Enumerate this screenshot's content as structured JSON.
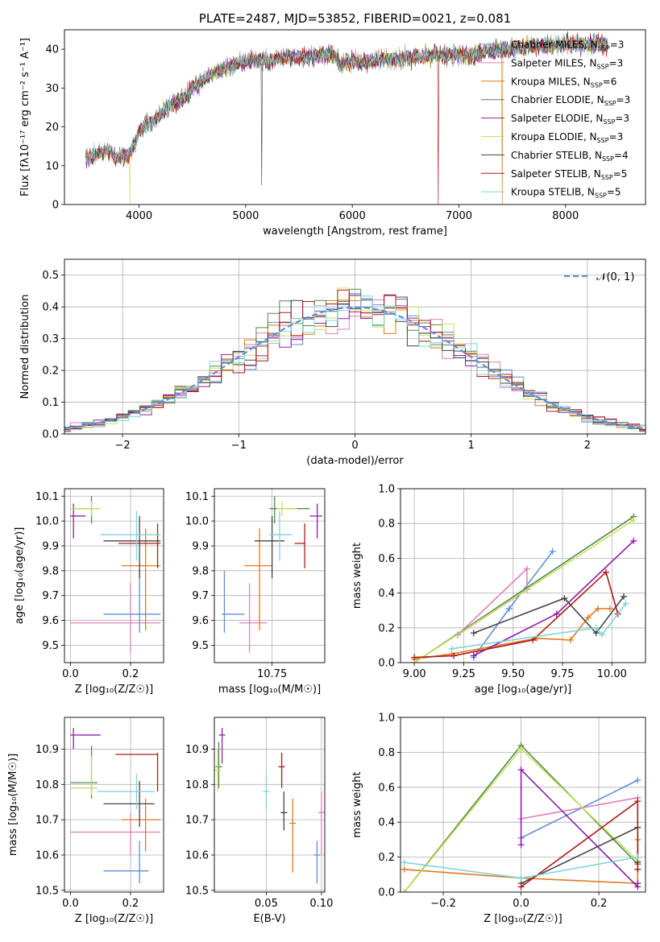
{
  "chart_data": [
    {
      "type": "line",
      "title": "PLATE=2487, MJD=53852, FIBERID=0021, z=0.081",
      "xlabel": "wavelength [Angstrom, rest frame]",
      "ylabel": "Flux [fλ10⁻¹⁷ erg cm⁻² s⁻¹ A⁻¹]",
      "xlim": [
        3300,
        8750
      ],
      "ylim": [
        0,
        45
      ],
      "xticks": [
        4000,
        5000,
        6000,
        7000,
        8000
      ],
      "yticks": [
        0,
        10,
        20,
        30,
        40
      ],
      "legend_position": "top-right",
      "legend": [
        {
          "label": "Chabrier MILES, N_SSP=3",
          "color": "#5f8fd8"
        },
        {
          "label": "Salpeter MILES, N_SSP=3",
          "color": "#e07fbf"
        },
        {
          "label": "Kroupa MILES, N_SSP=6",
          "color": "#e07a1c"
        },
        {
          "label": "Chabrier ELODIE, N_SSP=3",
          "color": "#4e8a4e"
        },
        {
          "label": "Salpeter ELODIE, N_SSP=3",
          "color": "#8e1fa8"
        },
        {
          "label": "Kroupa ELODIE, N_SSP=3",
          "color": "#c9e05a"
        },
        {
          "label": "Chabrier STELIB, N_SSP=4",
          "color": "#444444"
        },
        {
          "label": "Salpeter STELIB, N_SSP=5",
          "color": "#b01818"
        },
        {
          "label": "Kroupa STELIB, N_SSP=5",
          "color": "#7fd4dc"
        }
      ],
      "continuum_points": [
        [
          3500,
          12
        ],
        [
          3600,
          13
        ],
        [
          3700,
          14
        ],
        [
          3800,
          12
        ],
        [
          3900,
          13
        ],
        [
          3950,
          15
        ],
        [
          4000,
          19
        ],
        [
          4100,
          21
        ],
        [
          4200,
          23
        ],
        [
          4300,
          26
        ],
        [
          4400,
          27
        ],
        [
          4500,
          30
        ],
        [
          4600,
          32
        ],
        [
          4700,
          34
        ],
        [
          4800,
          35
        ],
        [
          4900,
          36
        ],
        [
          5000,
          37
        ],
        [
          5100,
          37.5
        ],
        [
          5200,
          37
        ],
        [
          5300,
          37.5
        ],
        [
          5400,
          38
        ],
        [
          5500,
          38
        ],
        [
          5600,
          38
        ],
        [
          5700,
          38.5
        ],
        [
          5800,
          39
        ],
        [
          5850,
          38
        ],
        [
          5900,
          36
        ],
        [
          6000,
          37
        ],
        [
          6100,
          36.5
        ],
        [
          6200,
          37
        ],
        [
          6300,
          37.5
        ],
        [
          6400,
          37.5
        ],
        [
          6500,
          38
        ],
        [
          6600,
          38
        ],
        [
          6700,
          38
        ],
        [
          6800,
          38.5
        ],
        [
          6900,
          38.5
        ],
        [
          7000,
          38.5
        ],
        [
          7100,
          38.5
        ],
        [
          7200,
          39
        ],
        [
          7300,
          39.5
        ],
        [
          7400,
          40
        ],
        [
          7500,
          40
        ],
        [
          7600,
          40.5
        ],
        [
          7700,
          41
        ],
        [
          7800,
          41
        ],
        [
          7900,
          41
        ],
        [
          8000,
          41.5
        ],
        [
          8100,
          41
        ],
        [
          8200,
          41
        ],
        [
          8300,
          41.5
        ],
        [
          8400,
          41
        ]
      ]
    },
    {
      "type": "histogram",
      "xlabel": "(data-model)/error",
      "ylabel": "Normed distribution",
      "xlim": [
        -2.5,
        2.5
      ],
      "ylim": [
        0,
        0.55
      ],
      "xticks": [
        -2,
        -1,
        0,
        1,
        2
      ],
      "yticks": [
        0.0,
        0.1,
        0.2,
        0.3,
        0.4,
        0.5
      ],
      "grid": true,
      "legend": [
        {
          "label": "𝒩(0, 1)",
          "color": "#5f8fd8",
          "style": "dashed"
        }
      ],
      "legend_position": "top-right"
    },
    {
      "type": "errorbar",
      "xlabel": "Z [log₁₀(Z/Z☉)]",
      "ylabel": "age  [log₁₀(age/yr)]",
      "xlim": [
        -0.02,
        0.31
      ],
      "ylim": [
        9.43,
        10.13
      ],
      "xticks": [
        0.0,
        0.2
      ],
      "yticks": [
        9.5,
        9.6,
        9.7,
        9.8,
        9.9,
        10.0,
        10.1
      ],
      "grid": true,
      "points": [
        {
          "color": "#5f8fd8",
          "x": 0.23,
          "y": 9.625,
          "xerr": [
            0.11,
            0.3
          ],
          "yerr": [
            9.55,
            9.8
          ]
        },
        {
          "color": "#e07fbf",
          "x": 0.2,
          "y": 9.59,
          "xerr": [
            0.0,
            0.3
          ],
          "yerr": [
            9.47,
            9.75
          ]
        },
        {
          "color": "#e07a1c",
          "x": 0.25,
          "y": 9.82,
          "xerr": [
            0.17,
            0.3
          ],
          "yerr": [
            9.56,
            9.97
          ]
        },
        {
          "color": "#4e8a4e",
          "x": 0.07,
          "y": 10.05,
          "xerr": [
            0.01,
            0.09
          ],
          "yerr": [
            9.99,
            10.1
          ]
        },
        {
          "color": "#8e1fa8",
          "x": 0.01,
          "y": 10.02,
          "xerr": [
            0.0,
            0.05
          ],
          "yerr": [
            9.93,
            10.07
          ]
        },
        {
          "color": "#c9e05a",
          "x": 0.07,
          "y": 10.05,
          "xerr": [
            0.0,
            0.1
          ],
          "yerr": [
            10.02,
            10.08
          ]
        },
        {
          "color": "#444444",
          "x": 0.23,
          "y": 9.92,
          "xerr": [
            0.11,
            0.3
          ],
          "yerr": [
            9.77,
            10.02
          ]
        },
        {
          "color": "#b01818",
          "x": 0.29,
          "y": 9.91,
          "xerr": [
            0.16,
            0.3
          ],
          "yerr": [
            9.81,
            9.99
          ]
        },
        {
          "color": "#7fd4dc",
          "x": 0.22,
          "y": 9.945,
          "xerr": [
            0.1,
            0.3
          ],
          "yerr": [
            9.84,
            10.04
          ]
        }
      ]
    },
    {
      "type": "errorbar",
      "xlabel": "mass [log₁₀(M/M☉)]",
      "ylabel": "",
      "xlim": [
        10.52,
        10.96
      ],
      "ylim": [
        9.43,
        10.13
      ],
      "xticks": [
        10.5,
        10.75
      ],
      "yticks": [
        9.5,
        9.6,
        9.7,
        9.8,
        9.9,
        10.0,
        10.1
      ],
      "grid": true,
      "points": [
        {
          "color": "#5f8fd8",
          "x": 10.56,
          "y": 9.625,
          "xerr": [
            10.55,
            10.64
          ],
          "yerr": [
            9.55,
            9.8
          ]
        },
        {
          "color": "#e07fbf",
          "x": 10.66,
          "y": 9.59,
          "xerr": [
            10.62,
            10.73
          ],
          "yerr": [
            9.47,
            9.75
          ]
        },
        {
          "color": "#e07a1c",
          "x": 10.7,
          "y": 9.82,
          "xerr": [
            10.64,
            10.75
          ],
          "yerr": [
            9.56,
            9.97
          ]
        },
        {
          "color": "#4e8a4e",
          "x": 10.76,
          "y": 10.05,
          "xerr": [
            10.74,
            10.9
          ],
          "yerr": [
            9.99,
            10.1
          ]
        },
        {
          "color": "#8e1fa8",
          "x": 10.93,
          "y": 10.02,
          "xerr": [
            10.9,
            10.95
          ],
          "yerr": [
            9.93,
            10.07
          ]
        },
        {
          "color": "#c9e05a",
          "x": 10.79,
          "y": 10.05,
          "xerr": [
            10.77,
            10.85
          ],
          "yerr": [
            10.02,
            10.08
          ]
        },
        {
          "color": "#444444",
          "x": 10.75,
          "y": 9.92,
          "xerr": [
            10.68,
            10.8
          ],
          "yerr": [
            9.77,
            10.02
          ]
        },
        {
          "color": "#b01818",
          "x": 10.88,
          "y": 9.91,
          "xerr": [
            10.84,
            10.88
          ],
          "yerr": [
            9.81,
            9.99
          ]
        },
        {
          "color": "#7fd4dc",
          "x": 10.78,
          "y": 9.945,
          "xerr": [
            10.74,
            10.83
          ],
          "yerr": [
            9.84,
            10.04
          ]
        }
      ]
    },
    {
      "type": "line",
      "xlabel": "age  [log₁₀(age/yr)]",
      "ylabel": "mass weight",
      "xlim": [
        8.93,
        10.17
      ],
      "ylim": [
        0,
        1
      ],
      "xticks": [
        9.0,
        9.25,
        9.5,
        9.75,
        10.0
      ],
      "yticks": [
        0.0,
        0.2,
        0.4,
        0.6,
        0.8,
        1.0
      ],
      "grid": true,
      "series": [
        {
          "color": "#5f8fd8",
          "x": [
            9.3,
            9.48,
            9.7
          ],
          "y": [
            0.03,
            0.31,
            0.64
          ]
        },
        {
          "color": "#e07fbf",
          "x": [
            9.22,
            9.57,
            9.57,
            9.22
          ],
          "y": [
            0.16,
            0.54,
            0.42,
            0.16
          ]
        },
        {
          "color": "#e07a1c",
          "x": [
            9.0,
            9.19,
            9.62,
            9.79,
            9.88,
            9.93,
            9.99
          ],
          "y": [
            0.02,
            0.05,
            0.14,
            0.13,
            0.26,
            0.31,
            0.31
          ]
        },
        {
          "color": "#4e8a4e",
          "x": [
            9.0,
            10.11
          ],
          "y": [
            0.0,
            0.84
          ]
        },
        {
          "color": "#8e1fa8",
          "x": [
            9.3,
            9.72,
            10.11
          ],
          "y": [
            0.04,
            0.28,
            0.7
          ]
        },
        {
          "color": "#c9e05a",
          "x": [
            9.0,
            10.11
          ],
          "y": [
            0.0,
            0.82
          ]
        },
        {
          "color": "#444444",
          "x": [
            9.3,
            9.76,
            9.92,
            10.06
          ],
          "y": [
            0.17,
            0.37,
            0.17,
            0.38
          ]
        },
        {
          "color": "#b01818",
          "x": [
            9.0,
            9.2,
            9.6,
            9.97,
            10.03
          ],
          "y": [
            0.03,
            0.04,
            0.13,
            0.52,
            0.28
          ]
        },
        {
          "color": "#7fd4dc",
          "x": [
            9.19,
            9.92,
            9.95,
            10.07
          ],
          "y": [
            0.08,
            0.2,
            0.16,
            0.34
          ]
        }
      ]
    },
    {
      "type": "errorbar",
      "xlabel": "Z [log₁₀(Z/Z☉)]",
      "ylabel": "mass [log₁₀(M/M☉)]",
      "xlim": [
        -0.02,
        0.31
      ],
      "ylim": [
        10.495,
        10.99
      ],
      "xticks": [
        0.0,
        0.2
      ],
      "yticks": [
        10.5,
        10.6,
        10.7,
        10.8,
        10.9
      ],
      "grid": true,
      "points": [
        {
          "color": "#5f8fd8",
          "x": 0.23,
          "y": 10.555,
          "xerr": [
            0.11,
            0.26
          ],
          "yerr": [
            10.52,
            10.64
          ]
        },
        {
          "color": "#e07fbf",
          "x": 0.2,
          "y": 10.665,
          "xerr": [
            0.0,
            0.3
          ],
          "yerr": [
            10.6,
            10.72
          ]
        },
        {
          "color": "#e07a1c",
          "x": 0.25,
          "y": 10.7,
          "xerr": [
            0.17,
            0.3
          ],
          "yerr": [
            10.61,
            10.76
          ]
        },
        {
          "color": "#4e8a4e",
          "x": 0.07,
          "y": 10.805,
          "xerr": [
            0.0,
            0.09
          ],
          "yerr": [
            10.76,
            10.91
          ]
        },
        {
          "color": "#8e1fa8",
          "x": 0.01,
          "y": 10.94,
          "xerr": [
            0.0,
            0.1
          ],
          "yerr": [
            10.9,
            10.96
          ]
        },
        {
          "color": "#c9e05a",
          "x": 0.07,
          "y": 10.79,
          "xerr": [
            0.0,
            0.09
          ],
          "yerr": [
            10.77,
            10.88
          ]
        },
        {
          "color": "#444444",
          "x": 0.23,
          "y": 10.745,
          "xerr": [
            0.11,
            0.28
          ],
          "yerr": [
            10.68,
            10.81
          ]
        },
        {
          "color": "#b01818",
          "x": 0.29,
          "y": 10.885,
          "xerr": [
            0.15,
            0.29
          ],
          "yerr": [
            10.78,
            10.89
          ]
        },
        {
          "color": "#7fd4dc",
          "x": 0.22,
          "y": 10.78,
          "xerr": [
            0.09,
            0.28
          ],
          "yerr": [
            10.73,
            10.83
          ]
        }
      ]
    },
    {
      "type": "errorbar",
      "xlabel": "E(B-V)",
      "ylabel": "",
      "xlim": [
        0.003,
        0.103
      ],
      "ylim": [
        10.495,
        10.99
      ],
      "xticks": [
        0.05,
        0.1
      ],
      "yticks": [
        10.5,
        10.6,
        10.7,
        10.8,
        10.9
      ],
      "grid": true,
      "points": [
        {
          "color": "#5f8fd8",
          "x": 0.096,
          "y": 10.6,
          "yerr": [
            10.52,
            10.64
          ]
        },
        {
          "color": "#e07fbf",
          "x": 0.1,
          "y": 10.72,
          "yerr": [
            10.6,
            10.78
          ]
        },
        {
          "color": "#e07a1c",
          "x": 0.074,
          "y": 10.69,
          "yerr": [
            10.55,
            10.76
          ]
        },
        {
          "color": "#4e8a4e",
          "x": 0.007,
          "y": 10.85,
          "yerr": [
            10.79,
            10.92
          ]
        },
        {
          "color": "#8e1fa8",
          "x": 0.01,
          "y": 10.94,
          "yerr": [
            10.86,
            10.96
          ]
        },
        {
          "color": "#c9e05a",
          "x": 0.006,
          "y": 10.84,
          "yerr": [
            10.78,
            10.9
          ]
        },
        {
          "color": "#444444",
          "x": 0.066,
          "y": 10.72,
          "yerr": [
            10.67,
            10.78
          ]
        },
        {
          "color": "#b01818",
          "x": 0.064,
          "y": 10.85,
          "yerr": [
            10.79,
            10.89
          ]
        },
        {
          "color": "#7fd4dc",
          "x": 0.05,
          "y": 10.78,
          "yerr": [
            10.73,
            10.83
          ]
        }
      ]
    },
    {
      "type": "line",
      "xlabel": "Z [log₁₀(Z/Z☉)]",
      "ylabel": "mass weight",
      "xlim": [
        -0.31,
        0.32
      ],
      "ylim": [
        0,
        1
      ],
      "xticks": [
        -0.2,
        0.0,
        0.2
      ],
      "yticks": [
        0.0,
        0.2,
        0.4,
        0.6,
        0.8,
        1.0
      ],
      "grid": true,
      "series": [
        {
          "color": "#5f8fd8",
          "x": [
            0.0,
            0.3
          ],
          "y": [
            0.31,
            0.64
          ]
        },
        {
          "color": "#e07fbf",
          "x": [
            0.0,
            0.3
          ],
          "y": [
            0.42,
            0.54
          ]
        },
        {
          "color": "#e07a1c",
          "x": [
            -0.3,
            0.0,
            0.3,
            0.3
          ],
          "y": [
            0.13,
            0.08,
            0.05,
            0.3
          ]
        },
        {
          "color": "#4e8a4e",
          "x": [
            -0.3,
            0.0,
            0.3
          ],
          "y": [
            0.0,
            0.84,
            0.16
          ]
        },
        {
          "color": "#8e1fa8",
          "x": [
            0.0,
            0.0,
            0.3,
            0.3
          ],
          "y": [
            0.27,
            0.7,
            0.03,
            0.05
          ]
        },
        {
          "color": "#c9e05a",
          "x": [
            -0.3,
            0.0,
            0.3
          ],
          "y": [
            0.0,
            0.82,
            0.18
          ]
        },
        {
          "color": "#444444",
          "x": [
            0.0,
            0.3,
            0.3
          ],
          "y": [
            0.05,
            0.37,
            0.17
          ]
        },
        {
          "color": "#b01818",
          "x": [
            0.0,
            0.3,
            0.3
          ],
          "y": [
            0.03,
            0.52,
            0.13
          ]
        },
        {
          "color": "#7fd4dc",
          "x": [
            -0.3,
            0.0,
            0.3
          ],
          "y": [
            0.17,
            0.08,
            0.2
          ]
        }
      ]
    }
  ]
}
